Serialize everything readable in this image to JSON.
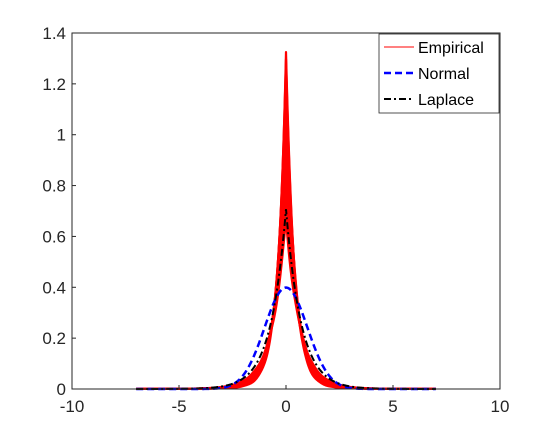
{
  "chart_data": {
    "type": "line",
    "title": "",
    "xlabel": "",
    "ylabel": "",
    "xlim": [
      -10,
      10
    ],
    "ylim": [
      0,
      1.4
    ],
    "x_ticks": [
      -10,
      -5,
      0,
      5,
      10
    ],
    "y_ticks": [
      0,
      0.2,
      0.4,
      0.6,
      0.8,
      1,
      1.2,
      1.4
    ],
    "x_tick_labels": [
      "-10",
      "-5",
      "0",
      "5",
      "10"
    ],
    "y_tick_labels": [
      "0",
      "0.2",
      "0.4",
      "0.6",
      "0.8",
      "1",
      "1.2",
      "1.4"
    ],
    "grid": false,
    "legend_position": "top-right",
    "x_range_plotted": [
      -7,
      7
    ],
    "series": [
      {
        "name": "Empirical",
        "color": "#ff0000",
        "line_style": "solid",
        "note": "many overlapping empirical density curves",
        "curves": [
          {
            "peak": 1.31,
            "scale": 0.38
          },
          {
            "peak": 1.27,
            "scale": 0.4
          },
          {
            "peak": 1.2,
            "scale": 0.42
          },
          {
            "peak": 1.1,
            "scale": 0.44
          },
          {
            "peak": 1.0,
            "scale": 0.47
          },
          {
            "peak": 0.92,
            "scale": 0.5
          },
          {
            "peak": 0.85,
            "scale": 0.53
          },
          {
            "peak": 0.78,
            "scale": 0.56
          },
          {
            "peak": 0.72,
            "scale": 0.6
          },
          {
            "peak": 0.65,
            "scale": 0.64
          }
        ]
      },
      {
        "name": "Normal",
        "color": "#0000ff",
        "line_style": "dashed",
        "mean": 0,
        "std": 1
      },
      {
        "name": "Laplace",
        "color": "#000000",
        "line_style": "dash-dot",
        "location": 0,
        "scale": 0.7071
      }
    ]
  }
}
